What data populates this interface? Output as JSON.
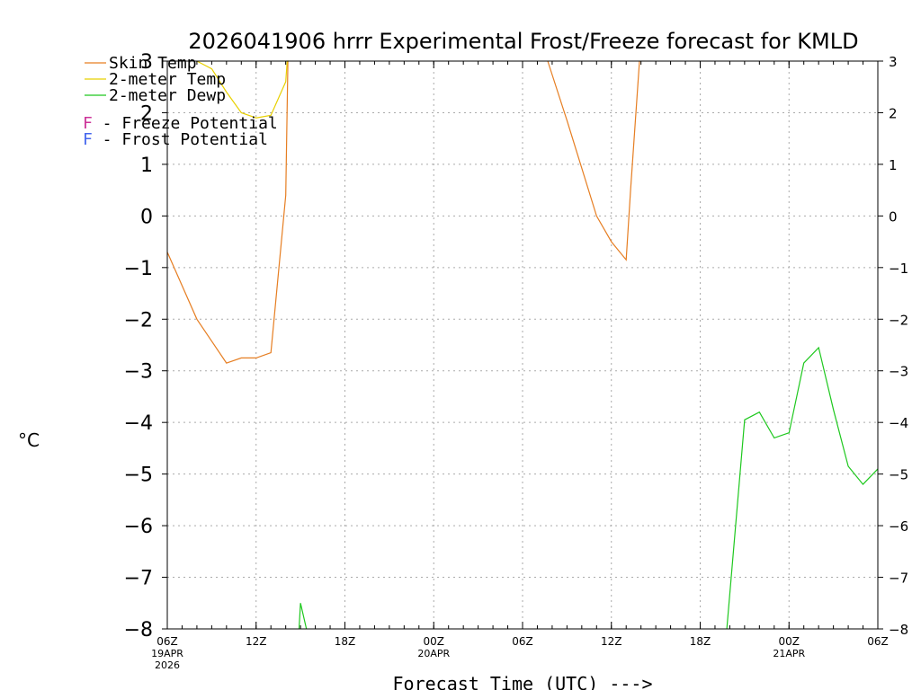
{
  "chart_data": {
    "type": "line",
    "title": "2026041906 hrrr Experimental Frost/Freeze forecast for KMLD",
    "ylabel": "°C",
    "xlabel": "Forecast Time (UTC) --->",
    "ylim": [
      -8,
      3
    ],
    "xlim": [
      0,
      48
    ],
    "yticks": [
      3,
      2,
      1,
      0,
      -1,
      -2,
      -3,
      -4,
      -5,
      -6,
      -7,
      -8
    ],
    "yticks_right": [
      "3",
      "2",
      "1",
      "0",
      "−1",
      "−2",
      "−3",
      "−4",
      "−5",
      "−6",
      "−7",
      "−8"
    ],
    "yticks_left": [
      "3",
      "2",
      "1",
      "0",
      "−1",
      "−2",
      "−3",
      "−4",
      "−5",
      "−6",
      "−7",
      "−8"
    ],
    "xticks": [
      {
        "x": 0,
        "label": "06Z",
        "sub": "19APR",
        "sub2": "2026"
      },
      {
        "x": 6,
        "label": "12Z",
        "sub": "",
        "sub2": ""
      },
      {
        "x": 12,
        "label": "18Z",
        "sub": "",
        "sub2": ""
      },
      {
        "x": 18,
        "label": "00Z",
        "sub": "20APR",
        "sub2": ""
      },
      {
        "x": 24,
        "label": "06Z",
        "sub": "",
        "sub2": ""
      },
      {
        "x": 30,
        "label": "12Z",
        "sub": "",
        "sub2": ""
      },
      {
        "x": 36,
        "label": "18Z",
        "sub": "",
        "sub2": ""
      },
      {
        "x": 42,
        "label": "00Z",
        "sub": "21APR",
        "sub2": ""
      },
      {
        "x": 48,
        "label": "06Z",
        "sub": "",
        "sub2": ""
      }
    ],
    "grid": true,
    "legend_placement": "top-left",
    "legend": [
      {
        "name": "Skin Temp",
        "color": "#e67e22"
      },
      {
        "name": "2-meter Temp",
        "color": "#e8d000"
      },
      {
        "name": "2-meter Dewp",
        "color": "#1ec81e"
      }
    ],
    "potential_notes": [
      {
        "letter": "F",
        "text": " - Freeze Potential",
        "color": "#cc3399"
      },
      {
        "letter": "F",
        "text": " - Frost Potential",
        "color": "#4466ee"
      }
    ],
    "series": [
      {
        "name": "Skin Temp",
        "color": "#e67e22",
        "x": [
          0,
          2,
          4,
          5,
          6,
          7,
          8,
          8.15
        ],
        "y": [
          -0.7,
          -2.0,
          -2.85,
          -2.75,
          -2.75,
          -2.65,
          0.4,
          3.0
        ]
      },
      {
        "name": "Skin Temp",
        "color": "#e67e22",
        "x": [
          25.7,
          27,
          29,
          30,
          31,
          31.3,
          31.9
        ],
        "y": [
          3.0,
          1.85,
          0.0,
          -0.5,
          -0.85,
          0.5,
          3.0
        ]
      },
      {
        "name": "2-meter Temp",
        "color": "#e8d000",
        "x": [
          2,
          3,
          4,
          5,
          6,
          7,
          8,
          8.1,
          8.2
        ],
        "y": [
          3.0,
          2.85,
          2.4,
          2.0,
          1.9,
          1.95,
          2.6,
          3.0,
          3.0
        ]
      },
      {
        "name": "2-meter Dewp",
        "color": "#1ec81e",
        "x": [
          8.9,
          9,
          9.4
        ],
        "y": [
          -8.0,
          -7.5,
          -8.0
        ]
      },
      {
        "name": "2-meter Dewp",
        "color": "#1ec81e",
        "x": [
          37.8,
          39,
          40,
          41,
          42,
          43,
          44,
          45,
          46,
          47,
          48
        ],
        "y": [
          -8.0,
          -3.95,
          -3.8,
          -4.3,
          -4.2,
          -2.85,
          -2.55,
          -3.75,
          -4.85,
          -5.2,
          -4.9
        ]
      }
    ]
  }
}
